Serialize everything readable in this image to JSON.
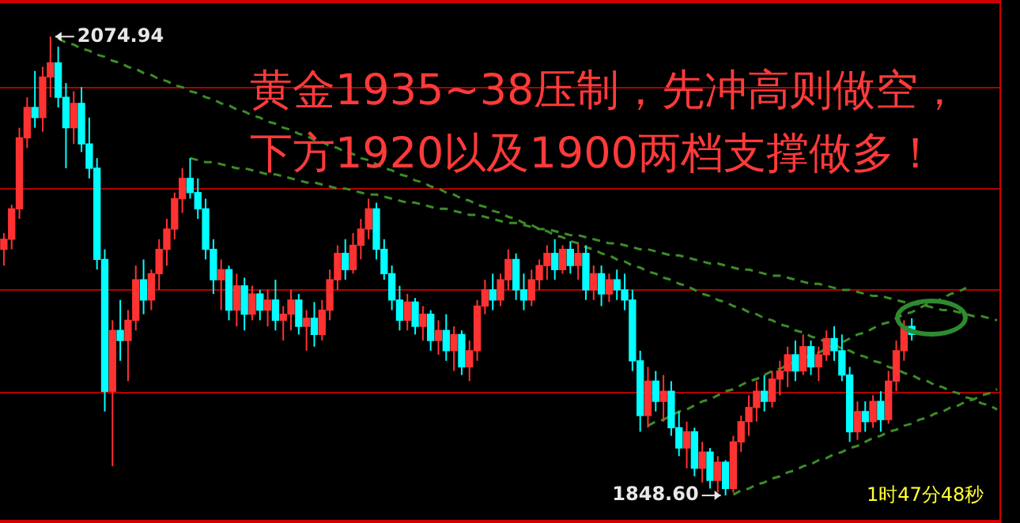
{
  "chart_data": {
    "type": "candlestick",
    "title": "黄金1935~38压制，先冲高则做空，",
    "subtitle": "下方1920以及1900两档支撑做多！",
    "categories": [
      null,
      null,
      null,
      null,
      null,
      null,
      null,
      null,
      null,
      null,
      null,
      null,
      null,
      null,
      null,
      null,
      null,
      null,
      null,
      null,
      null,
      null,
      null,
      null,
      null,
      null,
      null,
      null,
      null,
      null,
      null,
      null,
      null,
      null,
      null,
      null,
      null,
      null,
      null,
      null,
      null,
      null,
      null,
      null,
      null,
      null,
      null,
      null,
      null,
      null,
      null,
      null,
      null,
      null,
      null,
      null,
      null,
      null,
      null,
      null,
      null,
      null,
      null,
      null,
      null,
      null,
      null,
      null,
      null,
      null,
      null,
      null,
      null,
      null,
      null,
      null,
      null,
      null,
      null,
      null,
      null,
      null,
      null,
      null,
      null,
      null,
      null,
      null,
      null,
      null,
      null,
      null,
      null,
      null,
      null,
      null,
      null,
      null,
      null,
      null,
      null,
      null,
      null,
      null,
      null,
      null,
      null,
      null,
      null,
      null,
      null,
      null,
      null,
      null,
      null,
      null,
      null,
      null,
      null,
      null,
      null,
      null,
      null,
      null,
      null,
      null,
      null,
      null,
      null
    ],
    "ohlc": [
      [
        1970,
        1978,
        1962,
        1975
      ],
      [
        1975,
        1992,
        1970,
        1990
      ],
      [
        1990,
        2030,
        1985,
        2025
      ],
      [
        2025,
        2045,
        2020,
        2040
      ],
      [
        2040,
        2058,
        2030,
        2035
      ],
      [
        2035,
        2060,
        2028,
        2055
      ],
      [
        2055,
        2074.94,
        2045,
        2062
      ],
      [
        2062,
        2070,
        2040,
        2045
      ],
      [
        2045,
        2052,
        2010,
        2030
      ],
      [
        2030,
        2048,
        2022,
        2042
      ],
      [
        2042,
        2050,
        2018,
        2022
      ],
      [
        2022,
        2035,
        2005,
        2010
      ],
      [
        2010,
        2015,
        1960,
        1965
      ],
      [
        1965,
        1970,
        1890,
        1900
      ],
      [
        1900,
        1935,
        1863,
        1930
      ],
      [
        1930,
        1945,
        1915,
        1925
      ],
      [
        1925,
        1940,
        1905,
        1935
      ],
      [
        1935,
        1962,
        1930,
        1955
      ],
      [
        1955,
        1965,
        1938,
        1945
      ],
      [
        1945,
        1960,
        1940,
        1958
      ],
      [
        1958,
        1975,
        1950,
        1970
      ],
      [
        1970,
        1985,
        1962,
        1980
      ],
      [
        1980,
        1998,
        1975,
        1995
      ],
      [
        1995,
        2010,
        1988,
        2005
      ],
      [
        2005,
        2015,
        1995,
        1998
      ],
      [
        1998,
        2005,
        1985,
        1990
      ],
      [
        1990,
        1995,
        1965,
        1970
      ],
      [
        1970,
        1975,
        1948,
        1955
      ],
      [
        1955,
        1965,
        1940,
        1960
      ],
      [
        1960,
        1962,
        1935,
        1940
      ],
      [
        1940,
        1958,
        1932,
        1952
      ],
      [
        1952,
        1956,
        1930,
        1938
      ],
      [
        1938,
        1952,
        1935,
        1948
      ],
      [
        1948,
        1950,
        1935,
        1940
      ],
      [
        1940,
        1950,
        1932,
        1945
      ],
      [
        1945,
        1955,
        1930,
        1935
      ],
      [
        1935,
        1942,
        1925,
        1938
      ],
      [
        1938,
        1950,
        1930,
        1945
      ],
      [
        1945,
        1948,
        1928,
        1932
      ],
      [
        1932,
        1940,
        1920,
        1936
      ],
      [
        1936,
        1944,
        1922,
        1928
      ],
      [
        1928,
        1945,
        1925,
        1940
      ],
      [
        1940,
        1960,
        1935,
        1955
      ],
      [
        1955,
        1972,
        1950,
        1968
      ],
      [
        1968,
        1975,
        1955,
        1960
      ],
      [
        1960,
        1978,
        1958,
        1972
      ],
      [
        1972,
        1985,
        1965,
        1980
      ],
      [
        1980,
        1995,
        1975,
        1990
      ],
      [
        1990,
        1993,
        1965,
        1970
      ],
      [
        1970,
        1975,
        1955,
        1958
      ],
      [
        1958,
        1962,
        1940,
        1945
      ],
      [
        1945,
        1952,
        1930,
        1935
      ],
      [
        1935,
        1948,
        1930,
        1944
      ],
      [
        1944,
        1946,
        1928,
        1932
      ],
      [
        1932,
        1942,
        1925,
        1938
      ],
      [
        1938,
        1940,
        1920,
        1925
      ],
      [
        1925,
        1935,
        1918,
        1930
      ],
      [
        1930,
        1938,
        1915,
        1920
      ],
      [
        1920,
        1932,
        1910,
        1928
      ],
      [
        1928,
        1930,
        1908,
        1912
      ],
      [
        1912,
        1925,
        1905,
        1920
      ],
      [
        1920,
        1945,
        1915,
        1942
      ],
      [
        1942,
        1955,
        1938,
        1950
      ],
      [
        1950,
        1958,
        1940,
        1945
      ],
      [
        1945,
        1958,
        1942,
        1955
      ],
      [
        1955,
        1970,
        1950,
        1965
      ],
      [
        1965,
        1968,
        1945,
        1950
      ],
      [
        1950,
        1958,
        1940,
        1945
      ],
      [
        1945,
        1960,
        1942,
        1955
      ],
      [
        1955,
        1965,
        1950,
        1962
      ],
      [
        1962,
        1972,
        1955,
        1968
      ],
      [
        1968,
        1975,
        1955,
        1960
      ],
      [
        1960,
        1972,
        1958,
        1970
      ],
      [
        1970,
        1974,
        1958,
        1962
      ],
      [
        1962,
        1973,
        1955,
        1968
      ],
      [
        1968,
        1972,
        1945,
        1950
      ],
      [
        1950,
        1962,
        1945,
        1958
      ],
      [
        1958,
        1962,
        1942,
        1948
      ],
      [
        1948,
        1958,
        1944,
        1955
      ],
      [
        1955,
        1960,
        1945,
        1950
      ],
      [
        1950,
        1958,
        1940,
        1945
      ],
      [
        1945,
        1950,
        1910,
        1915
      ],
      [
        1915,
        1920,
        1880,
        1888
      ],
      [
        1888,
        1912,
        1882,
        1905
      ],
      [
        1905,
        1910,
        1890,
        1895
      ],
      [
        1895,
        1908,
        1885,
        1900
      ],
      [
        1900,
        1905,
        1878,
        1882
      ],
      [
        1882,
        1890,
        1868,
        1872
      ],
      [
        1872,
        1885,
        1862,
        1880
      ],
      [
        1880,
        1882,
        1858,
        1862
      ],
      [
        1862,
        1875,
        1855,
        1870
      ],
      [
        1870,
        1872,
        1852,
        1856
      ],
      [
        1856,
        1868,
        1850,
        1865
      ],
      [
        1865,
        1866,
        1848.6,
        1852
      ],
      [
        1852,
        1878,
        1850,
        1875
      ],
      [
        1875,
        1888,
        1870,
        1885
      ],
      [
        1885,
        1898,
        1878,
        1892
      ],
      [
        1892,
        1905,
        1885,
        1900
      ],
      [
        1900,
        1908,
        1890,
        1895
      ],
      [
        1895,
        1910,
        1892,
        1906
      ],
      [
        1906,
        1915,
        1898,
        1910
      ],
      [
        1910,
        1922,
        1902,
        1918
      ],
      [
        1918,
        1925,
        1905,
        1910
      ],
      [
        1910,
        1928,
        1908,
        1922
      ],
      [
        1922,
        1925,
        1908,
        1912
      ],
      [
        1912,
        1922,
        1905,
        1918
      ],
      [
        1918,
        1930,
        1915,
        1926
      ],
      [
        1926,
        1932,
        1915,
        1920
      ],
      [
        1920,
        1928,
        1905,
        1908
      ],
      [
        1908,
        1912,
        1875,
        1880
      ],
      [
        1880,
        1895,
        1876,
        1890
      ],
      [
        1890,
        1895,
        1880,
        1885
      ],
      [
        1885,
        1898,
        1882,
        1895
      ],
      [
        1895,
        1900,
        1880,
        1886
      ],
      [
        1886,
        1910,
        1884,
        1905
      ],
      [
        1905,
        1925,
        1900,
        1920
      ],
      [
        1920,
        1935,
        1915,
        1932
      ],
      [
        1932,
        1936,
        1925,
        1928
      ],
      null,
      null,
      null,
      null,
      null,
      null,
      null,
      null,
      null,
      null,
      null
    ],
    "colors": [
      "#ff3232",
      "#ff3232",
      "#ff3232",
      "#ff3232",
      "#00ffff",
      "#ff3232",
      "#ff3232",
      "#00ffff",
      "#00ffff",
      "#ff3232",
      "#00ffff",
      "#00ffff",
      "#00ffff",
      "#00ffff",
      "#ff3232",
      "#00ffff",
      "#ff3232",
      "#ff3232",
      "#00ffff",
      "#ff3232",
      "#ff3232",
      "#ff3232",
      "#ff3232",
      "#ff3232",
      "#00ffff",
      "#00ffff",
      "#00ffff",
      "#00ffff",
      "#ff3232",
      "#00ffff",
      "#ff3232",
      "#00ffff",
      "#ff3232",
      "#00ffff",
      "#ff3232",
      "#00ffff",
      "#ff3232",
      "#ff3232",
      "#00ffff",
      "#ff3232",
      "#00ffff",
      "#ff3232",
      "#ff3232",
      "#ff3232",
      "#00ffff",
      "#ff3232",
      "#ff3232",
      "#ff3232",
      "#00ffff",
      "#00ffff",
      "#00ffff",
      "#00ffff",
      "#ff3232",
      "#00ffff",
      "#ff3232",
      "#00ffff",
      "#ff3232",
      "#00ffff",
      "#ff3232",
      "#00ffff",
      "#ff3232",
      "#ff3232",
      "#ff3232",
      "#00ffff",
      "#ff3232",
      "#ff3232",
      "#00ffff",
      "#00ffff",
      "#ff3232",
      "#ff3232",
      "#ff3232",
      "#00ffff",
      "#ff3232",
      "#00ffff",
      "#ff3232",
      "#00ffff",
      "#ff3232",
      "#00ffff",
      "#ff3232",
      "#00ffff",
      "#00ffff",
      "#00ffff",
      "#00ffff",
      "#ff3232",
      "#00ffff",
      "#ff3232",
      "#00ffff",
      "#00ffff",
      "#ff3232",
      "#00ffff",
      "#ff3232",
      "#00ffff",
      "#ff3232",
      "#00ffff",
      "#ff3232",
      "#ff3232",
      "#ff3232",
      "#ff3232",
      "#00ffff",
      "#ff3232",
      "#ff3232",
      "#ff3232",
      "#00ffff",
      "#ff3232",
      "#00ffff",
      "#ff3232",
      "#ff3232",
      "#00ffff",
      "#00ffff",
      "#00ffff",
      "#ff3232",
      "#00ffff",
      "#ff3232",
      "#00ffff",
      "#ff3232",
      "#ff3232",
      "#ff3232",
      "#00ffff",
      null,
      null,
      null,
      null,
      null,
      null,
      null,
      null,
      null,
      null,
      null
    ],
    "series": [
      {
        "type": "line",
        "color": "#3c8c28",
        "line_style": "dashed",
        "values": [
          null,
          null,
          null,
          null,
          null,
          null,
          null,
          2074,
          2072,
          2071,
          2069,
          2068,
          2066,
          2065,
          2063,
          2062,
          2060,
          2059,
          2057,
          2056,
          2054,
          2053,
          2051,
          2050,
          2048,
          2047,
          2045,
          2044,
          2042,
          2041,
          2039,
          2038,
          2036,
          2035,
          2033,
          2032,
          2030,
          2029,
          2027,
          2026,
          2024,
          2023,
          2021,
          2020,
          2018,
          2017,
          2015,
          2014,
          2012,
          2010,
          2009,
          2007,
          2006,
          2004,
          2003,
          2001,
          2000,
          1998,
          1997,
          1995,
          1994,
          1992,
          1991,
          1989,
          1988,
          1986,
          1985,
          1983,
          1982,
          1980,
          1979,
          1977,
          1976,
          1974,
          1973,
          1971,
          1970,
          1968,
          1967,
          1965,
          1964,
          1962,
          1961,
          1959,
          1958,
          1956,
          1955,
          1953,
          1952,
          1950,
          1948,
          1947,
          1945,
          1944,
          1942,
          1941,
          1939,
          1938,
          1936,
          1935,
          1933,
          1932,
          1930,
          1929,
          1927,
          1926,
          1924,
          1923,
          1921,
          1920,
          1918,
          1917,
          1915,
          1914,
          1912,
          1911,
          1909,
          1908,
          1906,
          1905,
          1903,
          1902,
          1900,
          1899,
          1897,
          1896,
          1894,
          1893,
          1891
        ]
      },
      {
        "type": "line",
        "color": "#3c8c28",
        "line_style": "dashed",
        "values": [
          null,
          null,
          null,
          null,
          null,
          null,
          null,
          null,
          null,
          null,
          null,
          null,
          null,
          null,
          null,
          null,
          null,
          null,
          null,
          null,
          null,
          null,
          null,
          null,
          2015,
          2014,
          2013,
          2013,
          2012,
          2011,
          2010,
          2010,
          2009,
          2008,
          2007,
          2007,
          2006,
          2005,
          2004,
          2003,
          2003,
          2002,
          2001,
          2000,
          2000,
          1999,
          1998,
          1997,
          1997,
          1996,
          1995,
          1994,
          1993,
          1993,
          1992,
          1991,
          1990,
          1990,
          1989,
          1988,
          1987,
          1987,
          1986,
          1985,
          1984,
          1983,
          1983,
          1982,
          1981,
          1980,
          1980,
          1979,
          1978,
          1977,
          1977,
          1976,
          1975,
          1974,
          1973,
          1973,
          1972,
          1971,
          1970,
          1970,
          1969,
          1968,
          1967,
          1967,
          1966,
          1965,
          1964,
          1963,
          1963,
          1962,
          1961,
          1960,
          1960,
          1959,
          1958,
          1957,
          1957,
          1956,
          1955,
          1954,
          1953,
          1953,
          1952,
          1951,
          1950,
          1950,
          1949,
          1948,
          1947,
          1947,
          1946,
          1945,
          1944,
          1943,
          1943,
          1942,
          1941,
          1940,
          1940,
          1939,
          1938,
          1937,
          1937,
          1936,
          1935
        ]
      },
      {
        "type": "line",
        "color": "#3c8c28",
        "line_style": "dashed",
        "values": [
          null,
          null,
          null,
          null,
          null,
          null,
          null,
          null,
          null,
          null,
          null,
          null,
          null,
          null,
          null,
          null,
          null,
          null,
          null,
          null,
          null,
          null,
          null,
          null,
          null,
          null,
          null,
          null,
          null,
          null,
          null,
          null,
          null,
          null,
          null,
          null,
          null,
          null,
          null,
          null,
          null,
          null,
          null,
          null,
          null,
          null,
          null,
          null,
          null,
          null,
          null,
          null,
          null,
          null,
          null,
          null,
          null,
          null,
          null,
          null,
          null,
          null,
          null,
          null,
          null,
          null,
          null,
          null,
          null,
          null,
          null,
          null,
          null,
          null,
          null,
          null,
          null,
          null,
          null,
          null,
          null,
          null,
          null,
          null,
          null,
          null,
          null,
          null,
          null,
          null,
          null,
          null,
          null,
          null,
          1849,
          1851,
          1852,
          1854,
          1855,
          1857,
          1858,
          1860,
          1861,
          1863,
          1864,
          1866,
          1867,
          1869,
          1870,
          1872,
          1873,
          1875,
          1877,
          1878,
          1880,
          1881,
          1883,
          1884,
          1886,
          1887,
          1889,
          1890,
          1892,
          1893,
          1895,
          1896,
          1898,
          1899,
          1901
        ]
      },
      {
        "type": "line",
        "color": "#3c8c28",
        "line_style": "dashed",
        "values": [
          null,
          null,
          null,
          null,
          null,
          null,
          null,
          null,
          null,
          null,
          null,
          null,
          null,
          null,
          null,
          null,
          null,
          null,
          null,
          null,
          null,
          null,
          null,
          null,
          null,
          null,
          null,
          null,
          null,
          null,
          null,
          null,
          null,
          null,
          null,
          null,
          null,
          null,
          null,
          null,
          null,
          null,
          null,
          null,
          null,
          null,
          null,
          null,
          null,
          null,
          null,
          null,
          null,
          null,
          null,
          null,
          null,
          null,
          null,
          null,
          null,
          null,
          null,
          null,
          null,
          null,
          null,
          null,
          null,
          null,
          null,
          null,
          null,
          null,
          null,
          null,
          null,
          null,
          null,
          null,
          null,
          null,
          null,
          1883,
          1885,
          1886,
          1888,
          1890,
          1891,
          1893,
          1895,
          1896,
          1898,
          1900,
          1901,
          1903,
          1905,
          1906,
          1908,
          1910,
          1911,
          1913,
          1915,
          1916,
          1918,
          1919,
          1921,
          1923,
          1924,
          1926,
          1928,
          1929,
          1931,
          1933,
          1934,
          1936,
          1938,
          1939,
          1941,
          1943,
          1944,
          1946,
          1948,
          1949,
          1951,
          null,
          null,
          null,
          null
        ]
      }
    ],
    "ylim": [
      1835,
      2093
    ],
    "yticks": [
      {
        "value": 1900,
        "label": null
      },
      {
        "value": 1950,
        "label": null
      },
      {
        "value": 2000,
        "label": null
      },
      {
        "value": 2050,
        "label": null
      }
    ],
    "grid": "y",
    "legend": false,
    "annotations": [
      "2074.94",
      "1848.60",
      "1时47分48秒"
    ]
  }
}
